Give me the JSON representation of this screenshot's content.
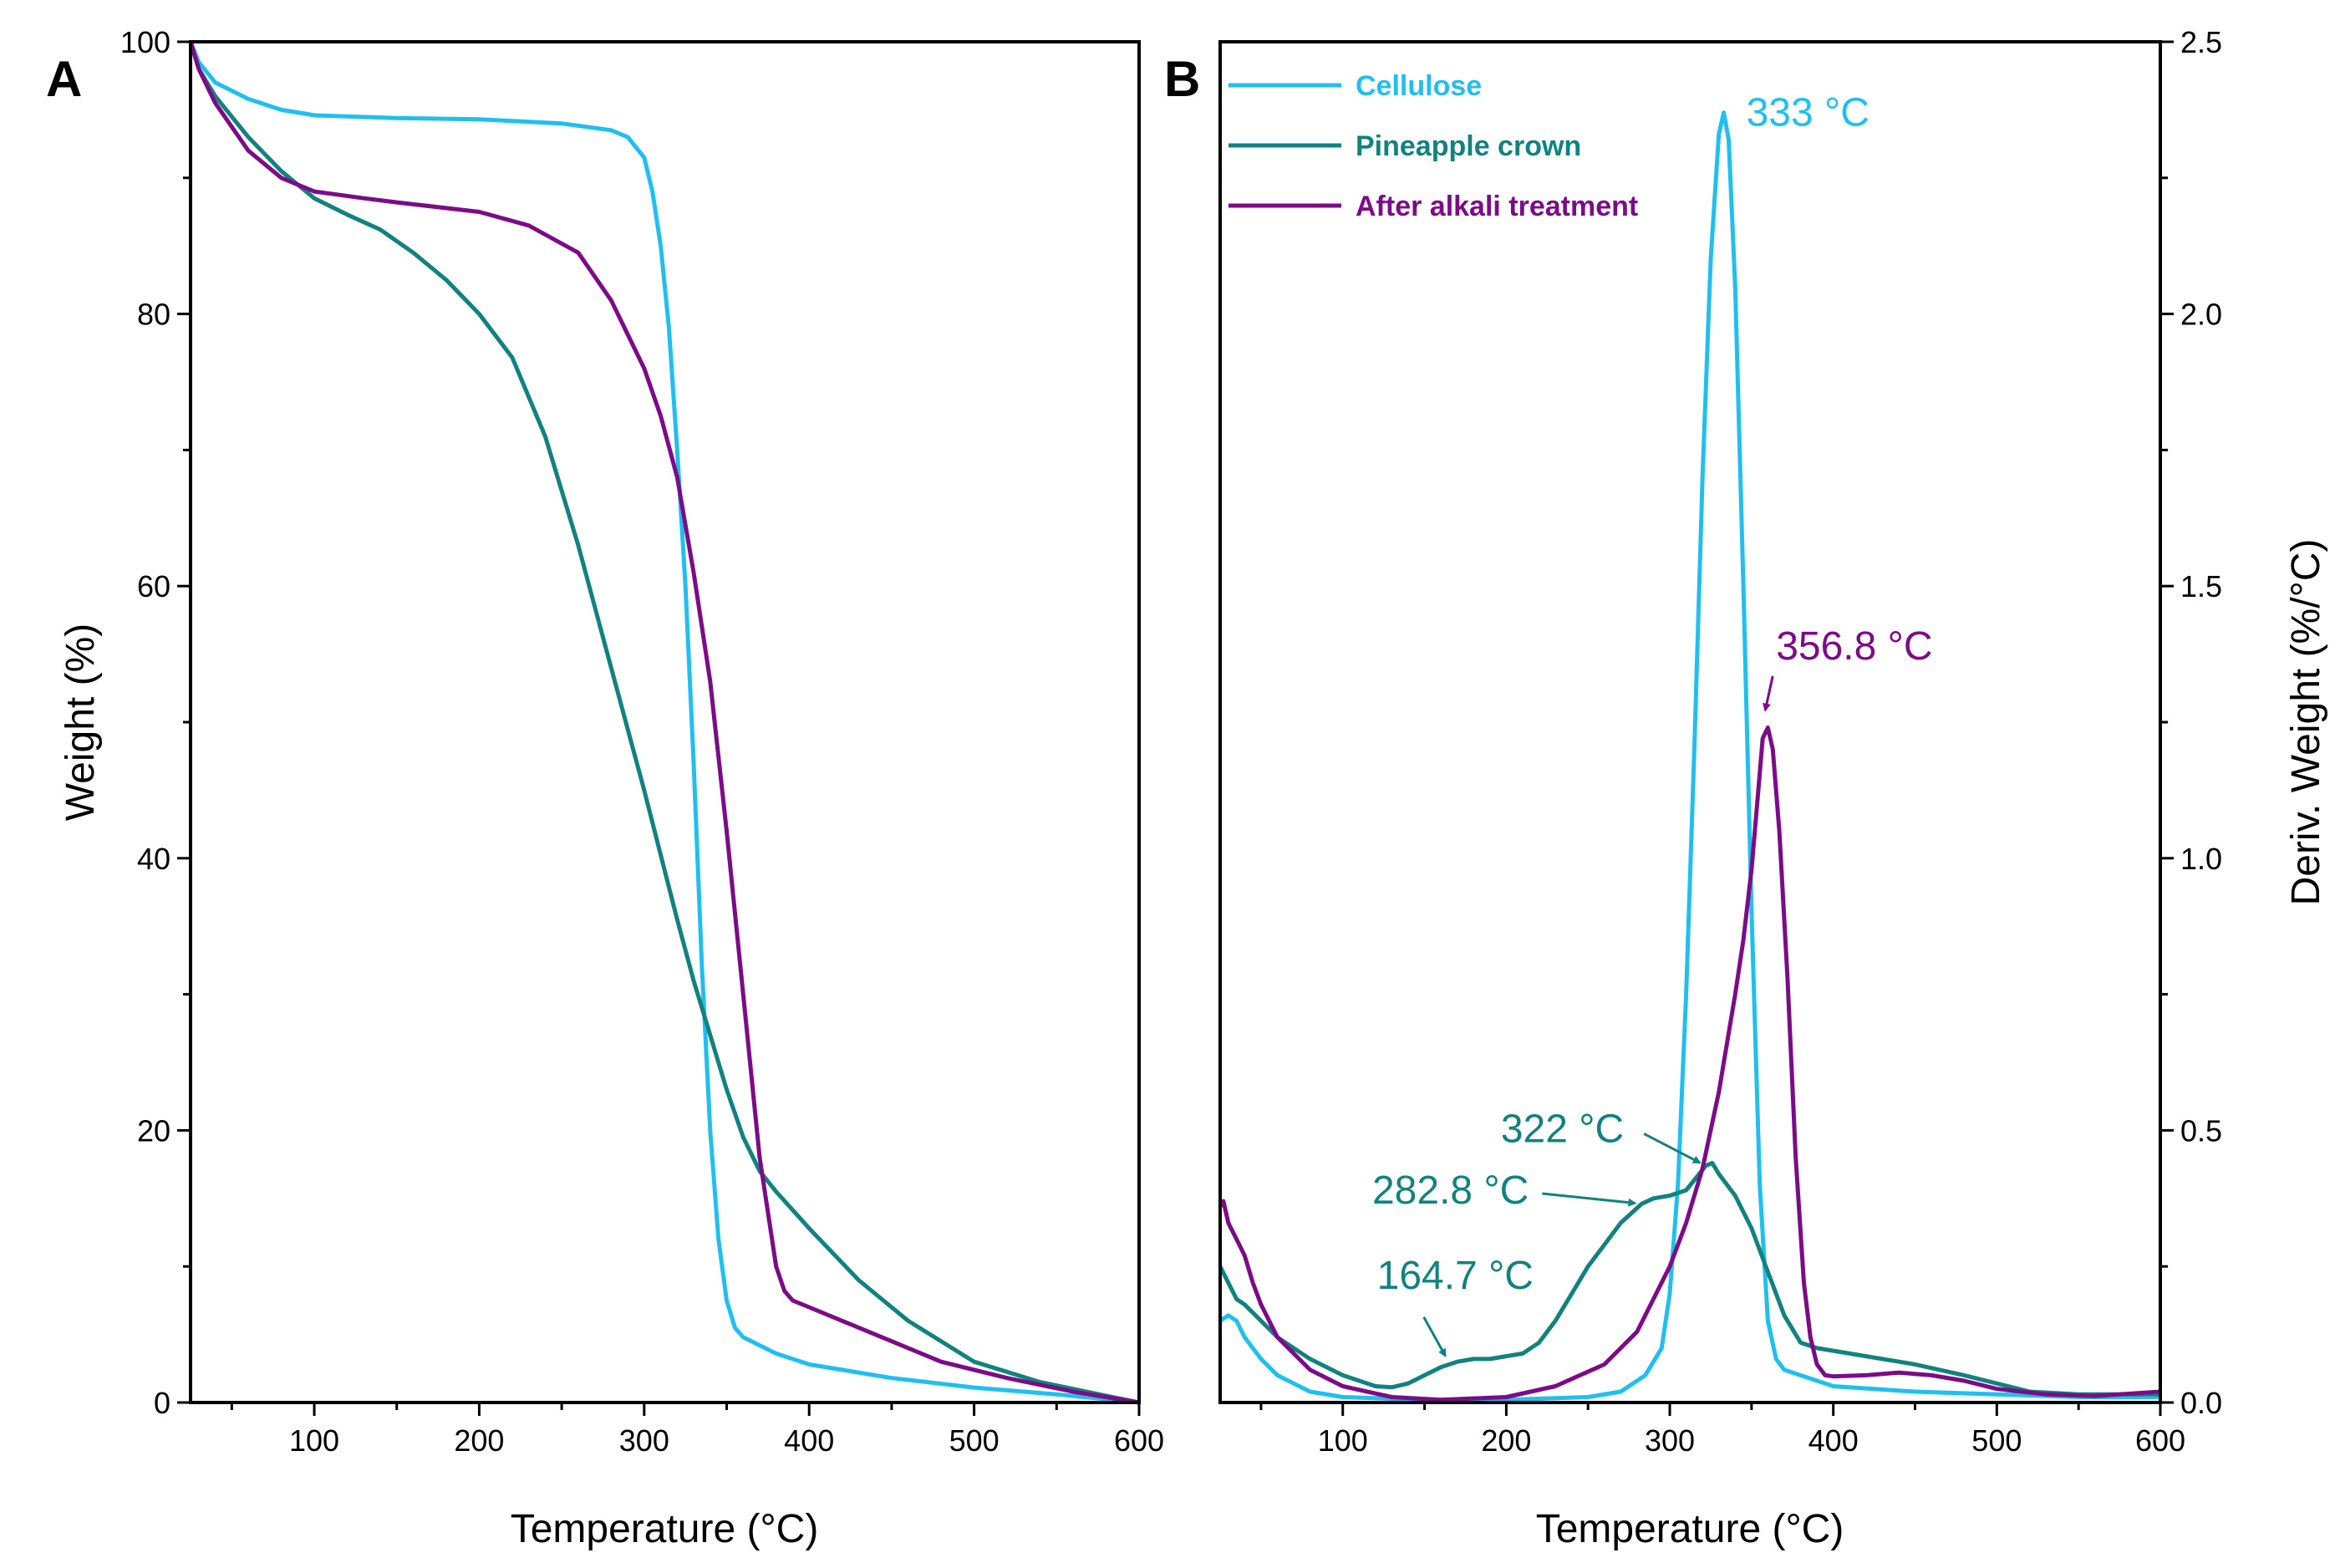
{
  "colors": {
    "cellulose": "#1FBFF0",
    "pineapple_crown": "#12827F",
    "after_alkali": "#7B0B86",
    "axis": "#000000"
  },
  "chart_data": [
    {
      "panel": "A",
      "type": "line",
      "xlabel": "Temperature (°C)",
      "ylabel": "Weight (%)",
      "xlim": [
        25,
        600
      ],
      "ylim": [
        0,
        100
      ],
      "xticks": [
        100,
        200,
        300,
        400,
        500,
        600
      ],
      "yticks": [
        0,
        20,
        40,
        60,
        80,
        100
      ],
      "legend": "none",
      "series": [
        {
          "name": "Cellulose",
          "color_key": "cellulose",
          "points": [
            [
              25,
              100
            ],
            [
              30,
              98.5
            ],
            [
              40,
              97
            ],
            [
              60,
              95.8
            ],
            [
              80,
              95
            ],
            [
              100,
              94.6
            ],
            [
              150,
              94.4
            ],
            [
              200,
              94.3
            ],
            [
              250,
              94
            ],
            [
              280,
              93.5
            ],
            [
              290,
              93
            ],
            [
              300,
              91.5
            ],
            [
              305,
              89
            ],
            [
              310,
              85
            ],
            [
              315,
              79
            ],
            [
              320,
              70
            ],
            [
              325,
              60
            ],
            [
              330,
              47
            ],
            [
              335,
              32
            ],
            [
              340,
              20
            ],
            [
              345,
              12
            ],
            [
              350,
              7.5
            ],
            [
              355,
              5.5
            ],
            [
              360,
              4.8
            ],
            [
              380,
              3.6
            ],
            [
              400,
              2.8
            ],
            [
              450,
              1.8
            ],
            [
              500,
              1.1
            ],
            [
              550,
              0.6
            ],
            [
              600,
              0
            ]
          ]
        },
        {
          "name": "Pineapple crown",
          "color_key": "pineapple_crown",
          "points": [
            [
              25,
              100
            ],
            [
              30,
              98
            ],
            [
              40,
              96
            ],
            [
              60,
              93
            ],
            [
              80,
              90.5
            ],
            [
              100,
              88.5
            ],
            [
              120,
              87.3
            ],
            [
              140,
              86.2
            ],
            [
              160,
              84.5
            ],
            [
              180,
              82.5
            ],
            [
              200,
              80
            ],
            [
              220,
              76.8
            ],
            [
              240,
              71
            ],
            [
              260,
              63
            ],
            [
              280,
              54
            ],
            [
              300,
              45
            ],
            [
              320,
              35.5
            ],
            [
              330,
              31
            ],
            [
              340,
              27
            ],
            [
              350,
              23
            ],
            [
              360,
              19.5
            ],
            [
              370,
              17
            ],
            [
              380,
              15.5
            ],
            [
              400,
              12.8
            ],
            [
              430,
              9
            ],
            [
              460,
              6
            ],
            [
              500,
              3
            ],
            [
              540,
              1.5
            ],
            [
              580,
              0.5
            ],
            [
              600,
              0
            ]
          ]
        },
        {
          "name": "After alkali treatment",
          "color_key": "after_alkali",
          "points": [
            [
              25,
              100
            ],
            [
              30,
              98
            ],
            [
              40,
              95.5
            ],
            [
              60,
              92
            ],
            [
              80,
              90
            ],
            [
              100,
              89
            ],
            [
              130,
              88.5
            ],
            [
              150,
              88.2
            ],
            [
              200,
              87.5
            ],
            [
              230,
              86.5
            ],
            [
              260,
              84.5
            ],
            [
              280,
              81
            ],
            [
              300,
              76
            ],
            [
              310,
              72.5
            ],
            [
              320,
              68
            ],
            [
              330,
              61
            ],
            [
              340,
              53
            ],
            [
              350,
              42
            ],
            [
              360,
              30
            ],
            [
              370,
              18
            ],
            [
              380,
              10
            ],
            [
              385,
              8.2
            ],
            [
              390,
              7.5
            ],
            [
              400,
              7
            ],
            [
              420,
              6
            ],
            [
              450,
              4.5
            ],
            [
              480,
              3
            ],
            [
              520,
              1.8
            ],
            [
              560,
              0.8
            ],
            [
              600,
              0
            ]
          ]
        }
      ]
    },
    {
      "panel": "B",
      "type": "line",
      "xlabel": "Temperature (°C)",
      "ylabel": "Deriv. Weight (%/°C)",
      "y_axis_side": "right",
      "xlim": [
        25,
        600
      ],
      "ylim": [
        0,
        2.5
      ],
      "xticks": [
        100,
        200,
        300,
        400,
        500,
        600
      ],
      "yticks": [
        0.0,
        0.5,
        1.0,
        1.5,
        2.0,
        2.5
      ],
      "ytick_labels": [
        "0.0",
        "0.5",
        "1.0",
        "1.5",
        "2.0",
        "2.5"
      ],
      "legend": "top-left",
      "series": [
        {
          "name": "Cellulose",
          "color_key": "cellulose",
          "points": [
            [
              25,
              0.15
            ],
            [
              30,
              0.16
            ],
            [
              35,
              0.15
            ],
            [
              40,
              0.12
            ],
            [
              50,
              0.08
            ],
            [
              60,
              0.05
            ],
            [
              80,
              0.02
            ],
            [
              100,
              0.01
            ],
            [
              150,
              0.005
            ],
            [
              200,
              0.005
            ],
            [
              250,
              0.01
            ],
            [
              270,
              0.02
            ],
            [
              285,
              0.05
            ],
            [
              295,
              0.1
            ],
            [
              300,
              0.2
            ],
            [
              305,
              0.4
            ],
            [
              310,
              0.75
            ],
            [
              315,
              1.2
            ],
            [
              320,
              1.7
            ],
            [
              325,
              2.1
            ],
            [
              330,
              2.33
            ],
            [
              333,
              2.37
            ],
            [
              336,
              2.32
            ],
            [
              340,
              2.05
            ],
            [
              345,
              1.5
            ],
            [
              350,
              0.9
            ],
            [
              355,
              0.4
            ],
            [
              360,
              0.15
            ],
            [
              365,
              0.08
            ],
            [
              370,
              0.06
            ],
            [
              400,
              0.03
            ],
            [
              450,
              0.02
            ],
            [
              500,
              0.015
            ],
            [
              550,
              0.01
            ],
            [
              600,
              0.01
            ]
          ]
        },
        {
          "name": "Pineapple crown",
          "color_key": "pineapple_crown",
          "points": [
            [
              25,
              0.25
            ],
            [
              30,
              0.22
            ],
            [
              35,
              0.19
            ],
            [
              40,
              0.18
            ],
            [
              50,
              0.15
            ],
            [
              60,
              0.12
            ],
            [
              80,
              0.08
            ],
            [
              100,
              0.05
            ],
            [
              120,
              0.03
            ],
            [
              130,
              0.028
            ],
            [
              140,
              0.035
            ],
            [
              150,
              0.05
            ],
            [
              160,
              0.065
            ],
            [
              170,
              0.075
            ],
            [
              180,
              0.08
            ],
            [
              190,
              0.08
            ],
            [
              200,
              0.085
            ],
            [
              210,
              0.09
            ],
            [
              220,
              0.11
            ],
            [
              230,
              0.15
            ],
            [
              240,
              0.2
            ],
            [
              250,
              0.25
            ],
            [
              260,
              0.29
            ],
            [
              270,
              0.33
            ],
            [
              282.8,
              0.365
            ],
            [
              290,
              0.375
            ],
            [
              300,
              0.38
            ],
            [
              310,
              0.39
            ],
            [
              318,
              0.42
            ],
            [
              322,
              0.435
            ],
            [
              326,
              0.44
            ],
            [
              330,
              0.42
            ],
            [
              340,
              0.38
            ],
            [
              350,
              0.32
            ],
            [
              360,
              0.24
            ],
            [
              370,
              0.16
            ],
            [
              380,
              0.11
            ],
            [
              390,
              0.1
            ],
            [
              400,
              0.095
            ],
            [
              420,
              0.085
            ],
            [
              450,
              0.07
            ],
            [
              480,
              0.05
            ],
            [
              500,
              0.035
            ],
            [
              520,
              0.02
            ],
            [
              550,
              0.015
            ],
            [
              600,
              0.015
            ]
          ]
        },
        {
          "name": "After alkali treatment",
          "color_key": "after_alkali",
          "points": [
            [
              25,
              0.36
            ],
            [
              27,
              0.37
            ],
            [
              30,
              0.33
            ],
            [
              35,
              0.3
            ],
            [
              40,
              0.27
            ],
            [
              45,
              0.22
            ],
            [
              50,
              0.18
            ],
            [
              60,
              0.12
            ],
            [
              80,
              0.06
            ],
            [
              100,
              0.03
            ],
            [
              130,
              0.01
            ],
            [
              160,
              0.005
            ],
            [
              200,
              0.01
            ],
            [
              230,
              0.03
            ],
            [
              260,
              0.07
            ],
            [
              280,
              0.13
            ],
            [
              300,
              0.25
            ],
            [
              310,
              0.33
            ],
            [
              320,
              0.43
            ],
            [
              330,
              0.57
            ],
            [
              340,
              0.75
            ],
            [
              345,
              0.85
            ],
            [
              350,
              0.98
            ],
            [
              354,
              1.12
            ],
            [
              356.8,
              1.22
            ],
            [
              360,
              1.24
            ],
            [
              363,
              1.2
            ],
            [
              367,
              1.05
            ],
            [
              372,
              0.78
            ],
            [
              377,
              0.45
            ],
            [
              382,
              0.22
            ],
            [
              386,
              0.12
            ],
            [
              390,
              0.07
            ],
            [
              395,
              0.05
            ],
            [
              400,
              0.048
            ],
            [
              420,
              0.05
            ],
            [
              440,
              0.055
            ],
            [
              460,
              0.05
            ],
            [
              480,
              0.04
            ],
            [
              500,
              0.025
            ],
            [
              530,
              0.015
            ],
            [
              560,
              0.012
            ],
            [
              600,
              0.02
            ]
          ]
        }
      ],
      "annotations": [
        {
          "text": "333 °C",
          "color_key": "cellulose",
          "x": 333,
          "y": 2.37,
          "arrow": false
        },
        {
          "text": "356.8 °C",
          "color_key": "after_alkali",
          "x": 357.5,
          "y": 1.26,
          "label_x": 365,
          "label_y": 1.35,
          "arrow": true
        },
        {
          "text": "322 °C",
          "color_key": "pineapple_crown",
          "x": 322,
          "y": 0.435,
          "label_x": 275,
          "label_y": 0.5,
          "arrow": true
        },
        {
          "text": "282.8 °C",
          "color_key": "pineapple_crown",
          "x": 282.8,
          "y": 0.365,
          "label_x": 225,
          "label_y": 0.39,
          "arrow": true
        },
        {
          "text": "164.7 °C",
          "color_key": "pineapple_crown",
          "x": 164.7,
          "y": 0.075,
          "label_x": 125,
          "label_y": 0.2,
          "arrow": true
        }
      ]
    }
  ],
  "panel_labels": {
    "a": "A",
    "b": "B"
  }
}
